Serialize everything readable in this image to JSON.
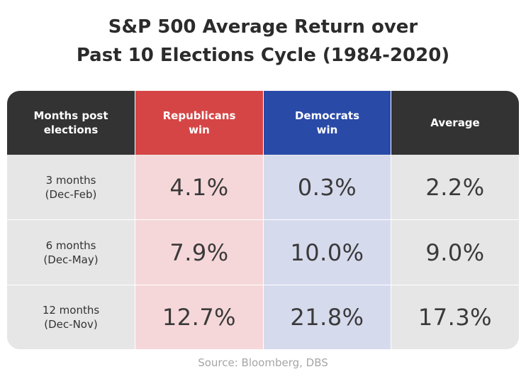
{
  "chart_data": {
    "type": "table",
    "title_lines": [
      "S&P 500 Average Return over",
      "Past 10 Elections Cycle (1984-2020)"
    ],
    "columns": [
      {
        "label_lines": [
          "Months post",
          "elections"
        ],
        "color": "#333333"
      },
      {
        "label_lines": [
          "Republicans",
          "win"
        ],
        "color": "#d64545"
      },
      {
        "label_lines": [
          "Democrats",
          "win"
        ],
        "color": "#2a4aa8"
      },
      {
        "label_lines": [
          "Average"
        ],
        "color": "#333333"
      }
    ],
    "rows": [
      {
        "label_lines": [
          "3 months",
          "(Dec-Feb)"
        ],
        "republicans": "4.1%",
        "democrats": "0.3%",
        "average": "2.2%"
      },
      {
        "label_lines": [
          "6 months",
          "(Dec-May)"
        ],
        "republicans": "7.9%",
        "democrats": "10.0%",
        "average": "9.0%"
      },
      {
        "label_lines": [
          "12 months",
          "(Dec-Nov)"
        ],
        "republicans": "12.7%",
        "democrats": "21.8%",
        "average": "17.3%"
      }
    ],
    "cell_colors": {
      "label": "#e6e6e6",
      "republicans": "#f6d7d9",
      "democrats": "#d6daed",
      "average": "#e6e6e6"
    },
    "source": "Source: Bloomberg, DBS"
  }
}
